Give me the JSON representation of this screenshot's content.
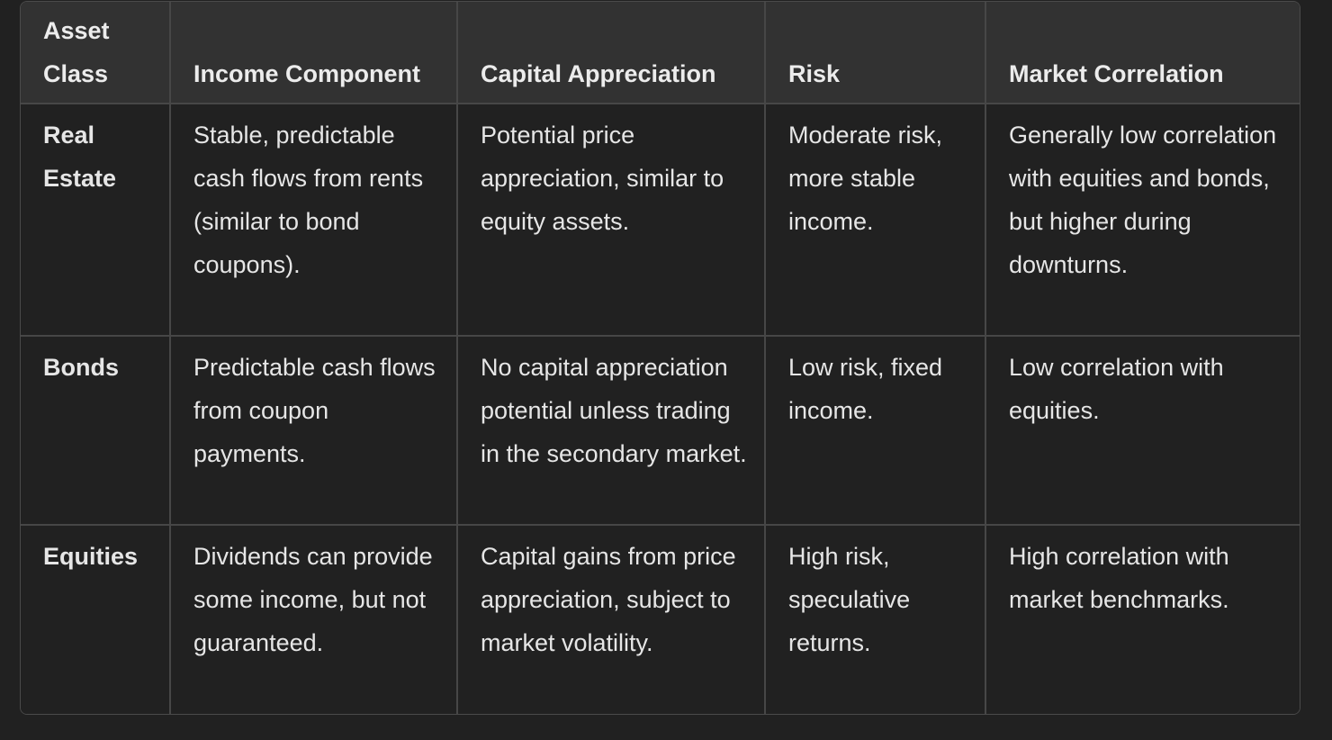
{
  "table": {
    "headers": [
      "Asset Class",
      "Income Component",
      "Capital Appreciation",
      "Risk",
      "Market Correlation"
    ],
    "rows": [
      [
        "Real Estate",
        "Stable, predictable cash flows from rents (similar to bond coupons).",
        "Potential price appreciation, similar to equity assets.",
        "Moderate risk, more stable income.",
        "Generally low correlation with equities and bonds, but higher during downturns."
      ],
      [
        "Bonds",
        "Predictable cash flows from coupon payments.",
        "No capital appreciation potential unless trading in the secondary market.",
        "Low risk, fixed income.",
        "Low correlation with equities."
      ],
      [
        "Equities",
        "Dividends can provide some income, but not guaranteed.",
        "Capital gains from price appreciation, subject to market volatility.",
        "High risk, speculative returns.",
        "High correlation with market benchmarks."
      ]
    ]
  }
}
